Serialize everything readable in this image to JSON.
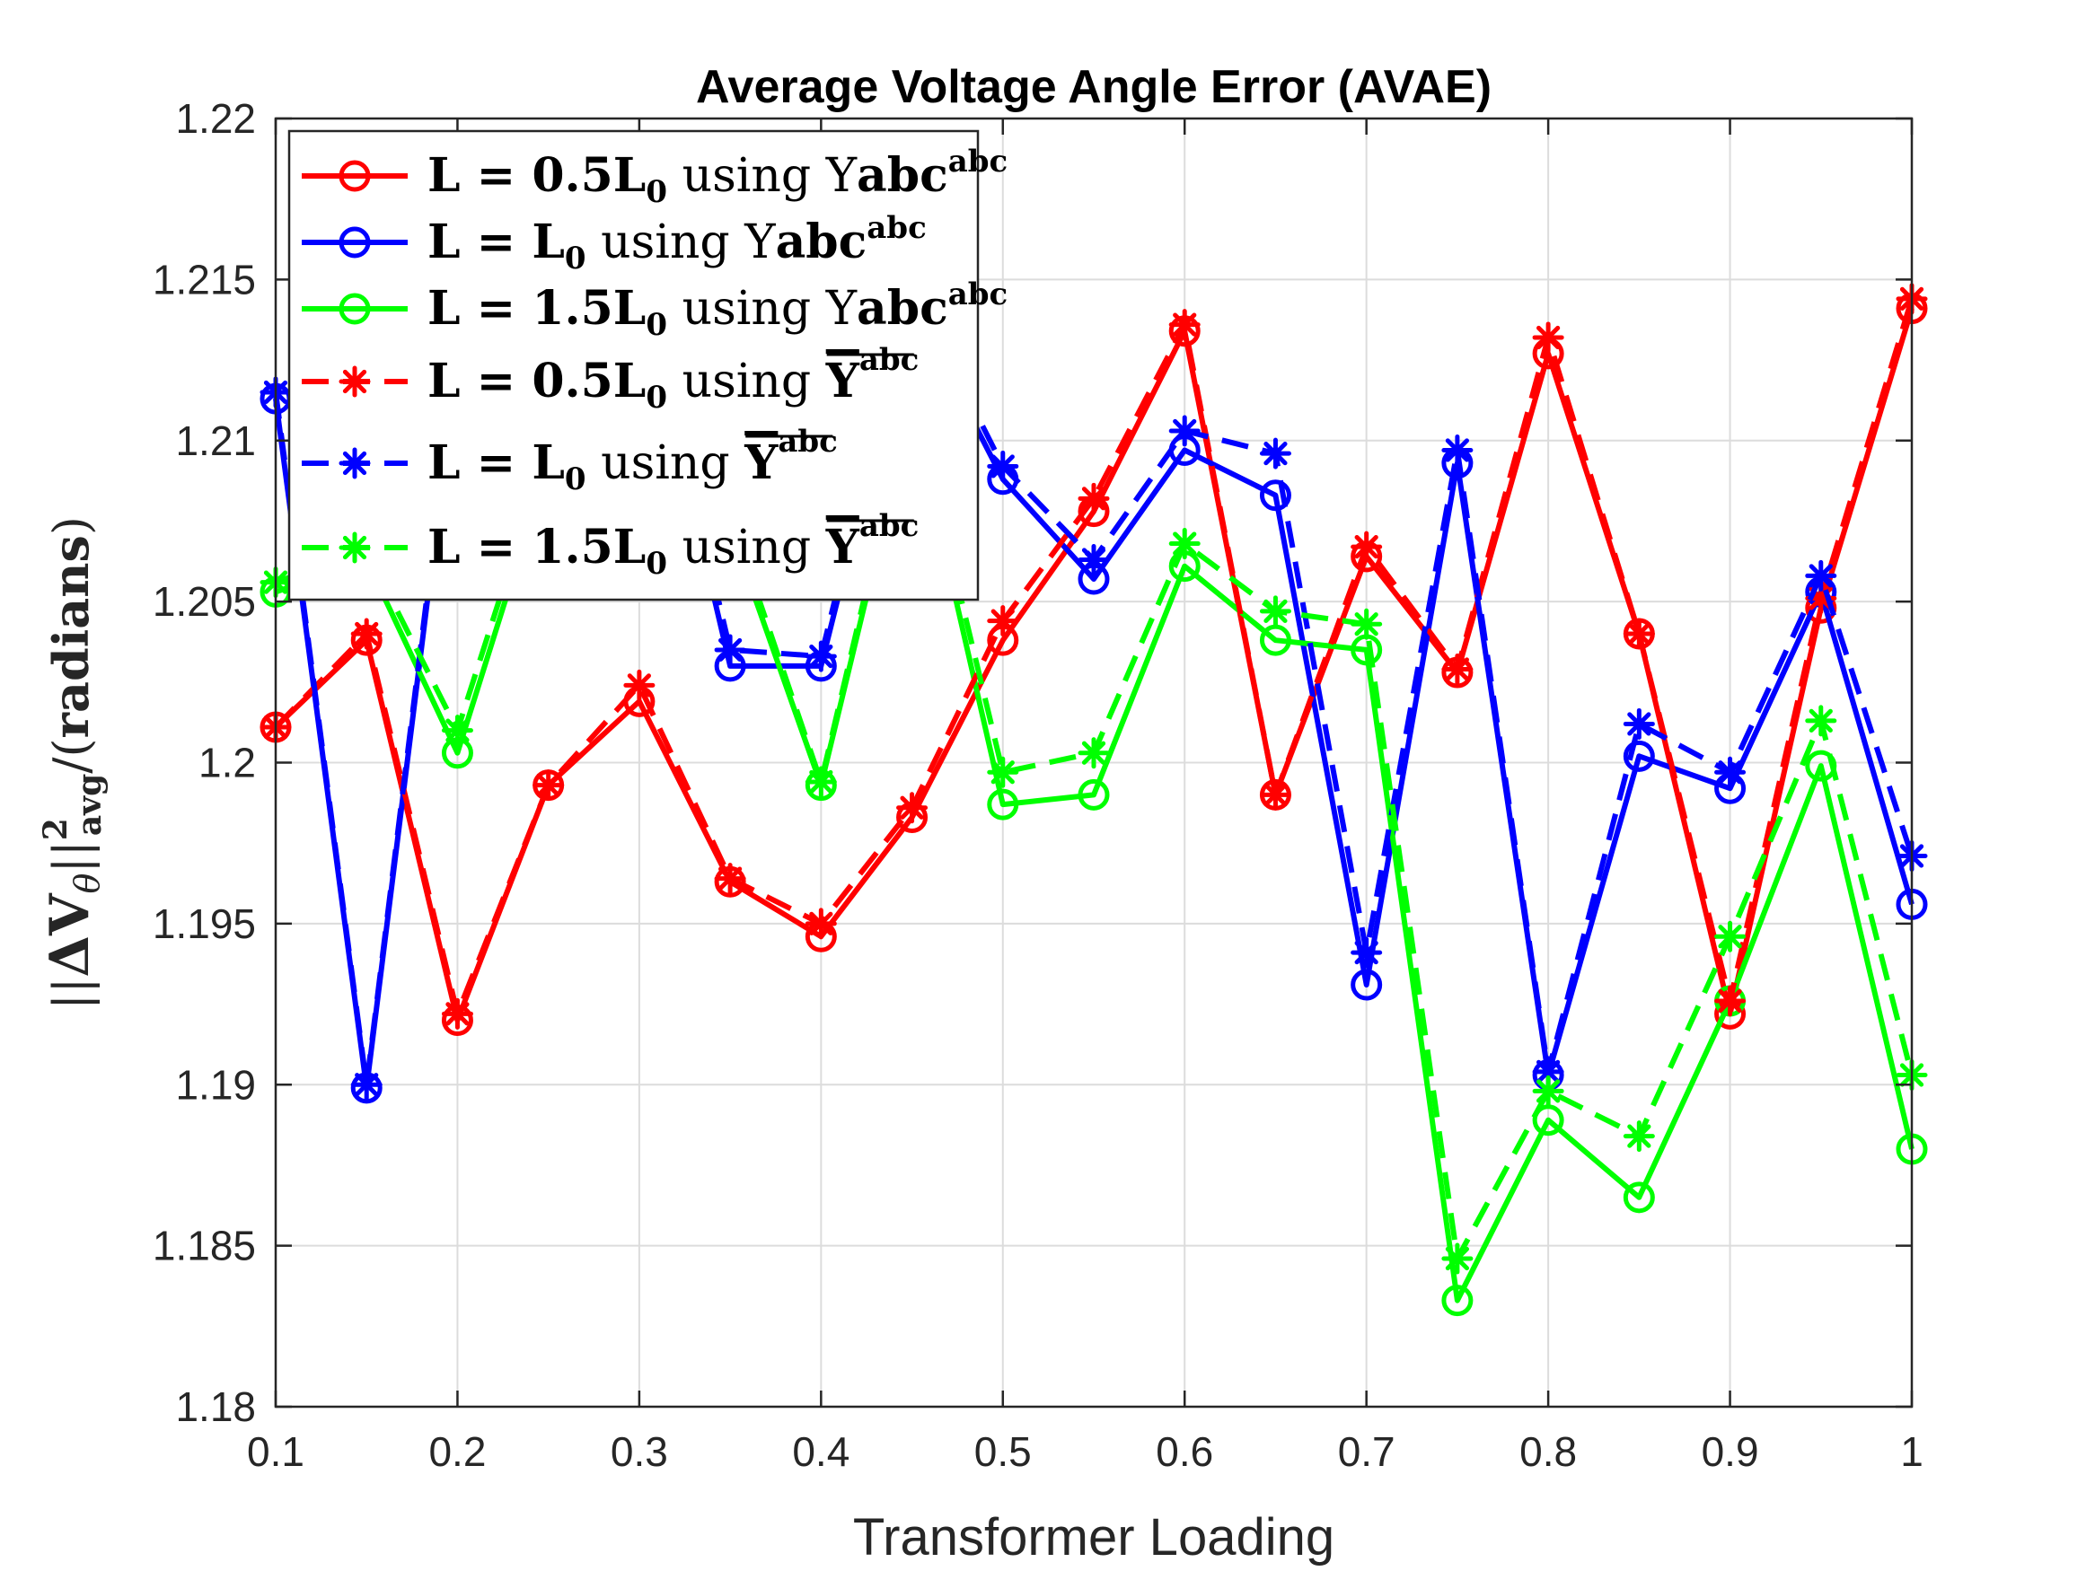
{
  "chart_data": {
    "type": "line",
    "title": "Average Voltage Angle Error (AVAE)",
    "xlabel": "Transformer Loading",
    "ylabel": "||ΔV_θ||²_avg/(radians)",
    "xlim": [
      0.1,
      1
    ],
    "ylim": [
      1.18,
      1.22
    ],
    "xticks": [
      "0.1",
      "0.2",
      "0.3",
      "0.4",
      "0.5",
      "0.6",
      "0.7",
      "0.8",
      "0.9",
      "1"
    ],
    "yticks": [
      "1.18",
      "1.185",
      "1.19",
      "1.195",
      "1.2",
      "1.205",
      "1.21",
      "1.215",
      "1.22"
    ],
    "grid": true,
    "legend_position": "top-left",
    "x": [
      0.1,
      0.15,
      0.2,
      0.25,
      0.3,
      0.35,
      0.4,
      0.45,
      0.5,
      0.55,
      0.6,
      0.65,
      0.7,
      0.75,
      0.8,
      0.85,
      0.9,
      0.95,
      1.0
    ],
    "series": [
      {
        "legend": [
          "L = 0.5L",
          "0",
          " using Y",
          "abc"
        ],
        "color": "#ff0000",
        "linestyle": "solid",
        "marker": "circle",
        "values": [
          1.2011,
          1.2038,
          1.192,
          1.1993,
          1.2019,
          1.1963,
          1.1946,
          1.1983,
          1.2038,
          1.2078,
          1.2134,
          1.199,
          1.2064,
          1.2028,
          1.2127,
          1.204,
          1.1922,
          1.2048,
          1.2141
        ]
      },
      {
        "legend": [
          "L = L",
          "0",
          " using Y",
          "abc"
        ],
        "color": "#0000ff",
        "linestyle": "solid",
        "marker": "circle",
        "values": [
          1.2113,
          1.1899,
          1.2125,
          1.2175,
          1.215,
          1.203,
          1.203,
          1.2143,
          1.2088,
          1.2057,
          1.2097,
          1.2083,
          1.1931,
          1.2093,
          1.1903,
          1.2002,
          1.1992,
          1.2053,
          1.1956
        ]
      },
      {
        "legend": [
          "L = 1.5L",
          "0",
          " using Y",
          "abc"
        ],
        "color": "#00ff00",
        "linestyle": "solid",
        "marker": "circle",
        "values": [
          1.2053,
          1.2063,
          1.2003,
          1.2093,
          1.2113,
          1.2073,
          1.1993,
          1.211,
          1.1987,
          1.199,
          1.2061,
          1.2038,
          1.2035,
          1.1833,
          1.1889,
          1.1865,
          1.1926,
          1.1999,
          1.188
        ]
      },
      {
        "legend": [
          "L = 0.5L",
          "0",
          " using ",
          "Y",
          "abc"
        ],
        "color": "#ff0000",
        "linestyle": "dashed",
        "marker": "star",
        "values": [
          1.2011,
          1.204,
          1.1922,
          1.1993,
          1.2024,
          1.1964,
          1.195,
          1.1986,
          1.2044,
          1.2082,
          1.2136,
          1.199,
          1.2067,
          1.2029,
          1.2132,
          1.204,
          1.1926,
          1.2051,
          1.2144
        ]
      },
      {
        "legend": [
          "L = L",
          "0",
          " using ",
          "Y",
          "abc"
        ],
        "color": "#0000ff",
        "linestyle": "dashed",
        "marker": "star",
        "values": [
          1.2115,
          1.19,
          1.2128,
          1.2178,
          1.2155,
          1.2035,
          1.2033,
          1.2148,
          1.2092,
          1.2063,
          1.2103,
          1.2096,
          1.1941,
          1.2097,
          1.1904,
          1.2012,
          1.1997,
          1.2058,
          1.1971
        ]
      },
      {
        "legend": [
          "L = 1.5L",
          "0",
          " using ",
          "Y",
          "abc"
        ],
        "color": "#00ff00",
        "linestyle": "dashed",
        "marker": "star",
        "values": [
          1.2056,
          1.2066,
          1.201,
          1.2098,
          1.2118,
          1.2077,
          1.1994,
          1.2114,
          1.1997,
          1.2003,
          1.2068,
          1.2047,
          1.2043,
          1.1846,
          1.1898,
          1.1884,
          1.1946,
          1.2013,
          1.1903
        ]
      }
    ]
  }
}
